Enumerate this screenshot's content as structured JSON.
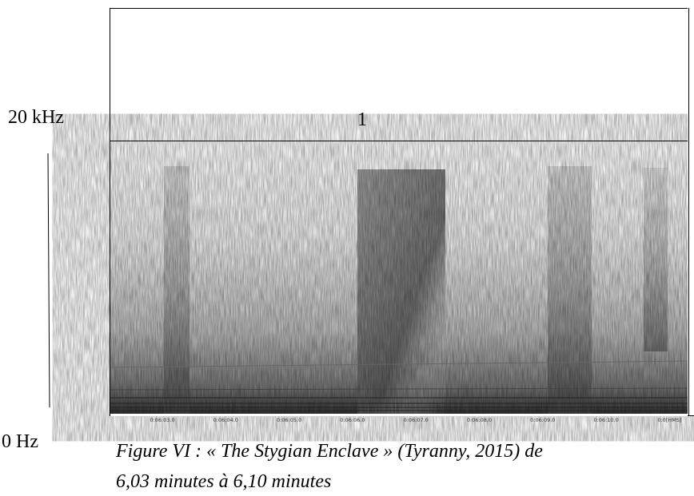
{
  "left_axis": {
    "top_label": "20 kHz",
    "bottom_label": "0 Hz"
  },
  "marker": "1",
  "time_ticks": [
    "0:06:03.0",
    "0:06:04.0",
    "0:06:05.0",
    "0:06:06.0",
    "0:06:07.0",
    "0:06:08.0",
    "0:06:09.0",
    "0:06:10.0",
    "0:0[HMS]"
  ],
  "caption": {
    "line1": "Figure VI : « The Stygian Enclave » (Tyranny, 2015) de",
    "line2": "6,03 minutes à 6,10 minutes"
  }
}
